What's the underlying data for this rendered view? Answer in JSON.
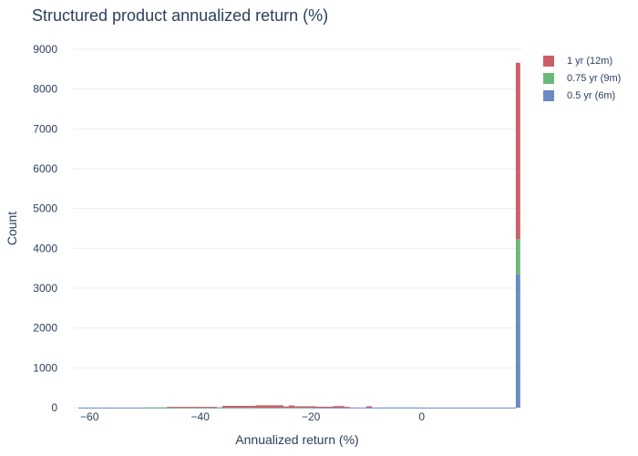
{
  "chart_data": {
    "type": "bar",
    "stacked": true,
    "title": "Structured product annualized return (%)",
    "xlabel": "Annualized return (%)",
    "ylabel": "Count",
    "xlim": [
      -63,
      18
    ],
    "ylim": [
      0,
      9000
    ],
    "x_ticks": [
      -60,
      -40,
      -20,
      0
    ],
    "y_ticks": [
      0,
      1000,
      2000,
      3000,
      4000,
      5000,
      6000,
      7000,
      8000,
      9000
    ],
    "grid": true,
    "legend_position": "top-right",
    "series": [
      {
        "name": "0.5 yr (6m)",
        "color": "#6b8ac4",
        "bins": [
          {
            "x0": -62,
            "x1": -50,
            "value": 3
          },
          {
            "x0": -50,
            "x1": -36,
            "value": 4
          },
          {
            "x0": -36,
            "x1": -20,
            "value": 5
          },
          {
            "x0": -20,
            "x1": 0,
            "value": 4
          },
          {
            "x0": 0,
            "x1": 17,
            "value": 3
          },
          {
            "x0": 17,
            "x1": 17.8,
            "value": 3350
          }
        ]
      },
      {
        "name": "0.75 yr (9m)",
        "color": "#6bb87a",
        "bins": [
          {
            "x0": -50,
            "x1": -36,
            "value": 3
          },
          {
            "x0": -36,
            "x1": -20,
            "value": 5
          },
          {
            "x0": 17,
            "x1": 17.8,
            "value": 880
          }
        ]
      },
      {
        "name": "1 yr (12m)",
        "color": "#c95f6a",
        "bins": [
          {
            "x0": -46,
            "x1": -37,
            "value": 20
          },
          {
            "x0": -36,
            "x1": -30,
            "value": 45
          },
          {
            "x0": -30,
            "x1": -25,
            "value": 60
          },
          {
            "x0": -25,
            "x1": -24,
            "value": 30
          },
          {
            "x0": -24,
            "x1": -23,
            "value": 55
          },
          {
            "x0": -23,
            "x1": -19,
            "value": 35
          },
          {
            "x0": -19,
            "x1": -16,
            "value": 25
          },
          {
            "x0": -16,
            "x1": -14,
            "value": 40
          },
          {
            "x0": -14,
            "x1": -13,
            "value": 20
          },
          {
            "x0": -10,
            "x1": -9,
            "value": 35
          },
          {
            "x0": 17,
            "x1": 17.8,
            "value": 4430
          }
        ]
      }
    ]
  }
}
